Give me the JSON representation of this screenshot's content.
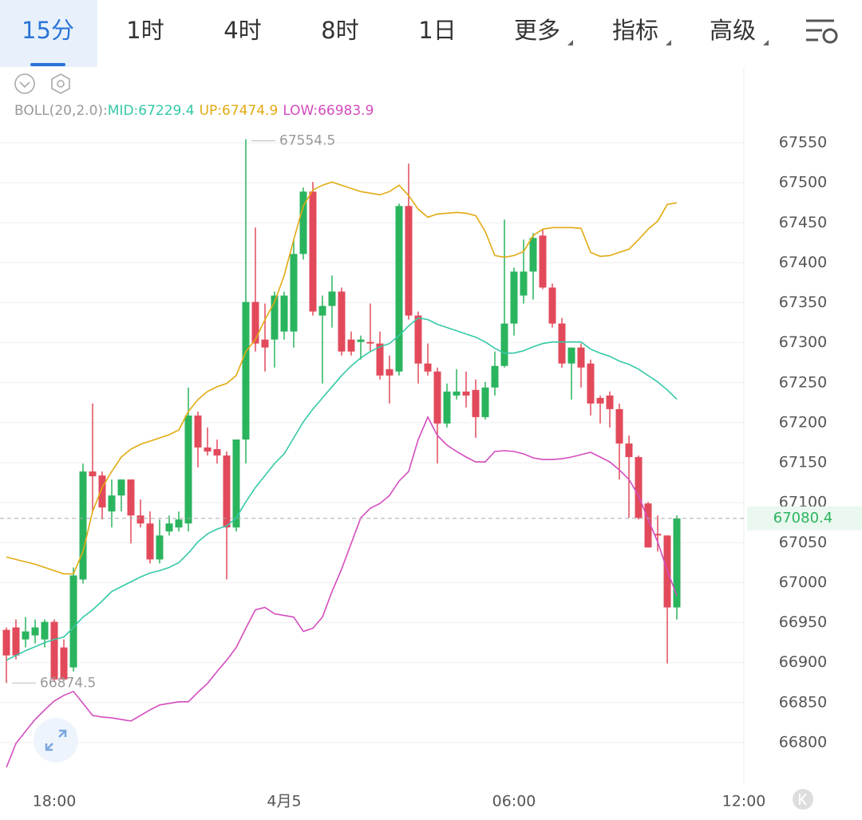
{
  "toolbar": {
    "tabs": [
      "15分",
      "1时",
      "4时",
      "8时",
      "1日",
      "更多",
      "指标",
      "高级"
    ]
  },
  "indicator": {
    "label": "BOLL(20,2.0):",
    "items": [
      {
        "text": "MID:67229.4",
        "color": "#35c9a8"
      },
      {
        "text": "UP:67474.9",
        "color": "#e2aa12"
      },
      {
        "text": "LOW:66983.9",
        "color": "#d44cbf"
      }
    ]
  },
  "chart_data": {
    "type": "candlestick",
    "categories": [
      null,
      null,
      null,
      null,
      null,
      "18:00",
      null,
      null,
      null,
      null,
      null,
      null,
      null,
      null,
      null,
      null,
      null,
      null,
      null,
      null,
      null,
      null,
      null,
      null,
      null,
      null,
      null,
      null,
      null,
      "4月5",
      null,
      null,
      null,
      null,
      null,
      null,
      null,
      null,
      null,
      null,
      null,
      null,
      null,
      null,
      null,
      null,
      null,
      null,
      null,
      null,
      null,
      null,
      null,
      "06:00",
      null,
      null,
      null,
      null,
      null,
      null,
      null,
      null,
      null,
      null,
      null,
      null,
      null,
      null,
      null,
      null,
      null,
      null,
      null,
      null,
      null,
      null,
      null,
      "12:00"
    ],
    "open": [
      66941,
      66944,
      66929,
      66934,
      66929,
      66951,
      66919,
      66894,
      67004,
      67139,
      67134,
      67089,
      67109,
      67129,
      67084,
      67074,
      67029,
      67064,
      67069,
      67074,
      67209,
      67169,
      67167,
      67159,
      67069,
      67179,
      67351,
      67304,
      67304,
      67314,
      67314,
      67411,
      67489,
      67334,
      67346,
      67364,
      67304,
      67301,
      67301,
      67299,
      67267,
      67264,
      67471,
      67334,
      67274,
      67264,
      67199,
      67234,
      67239,
      67241,
      67207,
      67244,
      67271,
      67324,
      67359,
      67389,
      67434,
      67369,
      67324,
      67274,
      67294,
      67274,
      67231,
      67234,
      67217,
      67174,
      67157,
      67099,
      67061,
      67059,
      66969,
      null,
      null,
      null,
      null,
      null,
      null,
      null
    ],
    "high": [
      66944,
      66954,
      66957,
      66954,
      66954,
      66954,
      66929,
      67019,
      67149,
      67224,
      67139,
      67129,
      67129,
      67129,
      67104,
      67089,
      67079,
      67084,
      67089,
      67244,
      67214,
      67194,
      67179,
      67164,
      67179,
      67554.5,
      67444,
      67349,
      67364,
      67364,
      67429,
      67494,
      67501,
      67359,
      67384,
      67369,
      67314,
      67309,
      67349,
      67314,
      67284,
      67474,
      67524,
      67339,
      67299,
      67269,
      67249,
      67267,
      67264,
      67254,
      67251,
      67289,
      67454,
      67394,
      67429,
      67437,
      67441,
      67374,
      67331,
      67294,
      67299,
      67279,
      67234,
      67239,
      67224,
      67184,
      67159,
      67101,
      67084,
      67059,
      67084,
      null,
      null,
      null,
      null,
      null,
      null,
      null
    ],
    "low": [
      66874.5,
      66904,
      66919,
      66924,
      66919,
      66876,
      66877,
      66889,
      66999,
      67089,
      67079,
      67069,
      67089,
      67049,
      67069,
      67024,
      67024,
      67059,
      67064,
      67064,
      67144,
      67159,
      67149,
      67004,
      67064,
      67149,
      67289,
      67264,
      67269,
      67304,
      67294,
      67404,
      67334,
      67249,
      67319,
      67284,
      67284,
      67279,
      67289,
      67254,
      67224,
      67259,
      67329,
      67249,
      67259,
      67149,
      67194,
      67229,
      67219,
      67181,
      67204,
      67234,
      67269,
      67309,
      67349,
      67354,
      67367,
      67319,
      67269,
      67229,
      67244,
      67209,
      67199,
      67194,
      67129,
      67081,
      67079,
      67044,
      67039,
      66899,
      66954,
      null,
      null,
      null,
      null,
      null,
      null,
      null
    ],
    "close": [
      66909,
      66909,
      66939,
      66944,
      66951,
      66879,
      66879,
      67009,
      67139,
      67133,
      67094,
      67109,
      67129,
      67084,
      67074,
      67029,
      67059,
      67074,
      67079,
      67209,
      67169,
      67164,
      67159,
      67069,
      67179,
      67351,
      67299,
      67294,
      67359,
      67359,
      67411,
      67489,
      67339,
      67346,
      67364,
      67289,
      67289,
      67304,
      67299,
      67259,
      67259,
      67471,
      67334,
      67274,
      67264,
      67199,
      67239,
      67239,
      67234,
      67207,
      67244,
      67271,
      67324,
      67389,
      67389,
      67431,
      67369,
      67324,
      67274,
      67294,
      67269,
      67224,
      67224,
      67217,
      67174,
      67157,
      67081,
      67044,
      67059,
      66969,
      67080.4,
      null,
      null,
      null,
      null,
      null,
      null,
      null
    ],
    "up_color": "#2ab45e",
    "down_color": "#e24a5b",
    "lines": [
      {
        "color": "#35c9a8",
        "values": [
          66903,
          66909,
          66915,
          66920,
          66925,
          66929,
          66932,
          66944,
          66957,
          66966,
          66977,
          66989,
          66995,
          67001,
          67007,
          67012,
          67015,
          67019,
          67025,
          67037,
          67051,
          67061,
          67067,
          67071,
          67081,
          67101,
          67119,
          67134,
          67149,
          67161,
          67181,
          67201,
          67217,
          67231,
          67245,
          67259,
          67271,
          67281,
          67289,
          67295,
          67299,
          67309,
          67321,
          67331,
          67329,
          67323,
          67319,
          67315,
          67311,
          67307,
          67301,
          67293,
          67287,
          67287,
          67290,
          67295,
          67299,
          67301,
          67301,
          67301,
          67301,
          67292,
          67287,
          67283,
          67277,
          67273,
          67267,
          67259,
          67251,
          67241,
          67229.4,
          null,
          null,
          null,
          null,
          null,
          null,
          null
        ]
      },
      {
        "color": "#e2aa12",
        "values": [
          67032,
          67029,
          67026,
          67023,
          67019,
          67015,
          67011,
          67011,
          67039,
          67089,
          67119,
          67139,
          67157,
          67167,
          67173,
          67177,
          67181,
          67185,
          67191,
          67214,
          67229,
          67239,
          67245,
          67249,
          67259,
          67289,
          67304,
          67329,
          67351,
          67384,
          67429,
          67471,
          67491,
          67497,
          67501,
          67497,
          67493,
          67489,
          67487,
          67485,
          67489,
          67497,
          67484,
          67467,
          67457,
          67461,
          67462,
          67463,
          67462,
          67459,
          67439,
          67409,
          67407,
          67409,
          67414,
          67434,
          67442,
          67444,
          67444,
          67444,
          67443,
          67413,
          67408,
          67409,
          67413,
          67417,
          67429,
          67442,
          67452,
          67473,
          67474.9,
          null,
          null,
          null,
          null,
          null,
          null,
          null
        ]
      },
      {
        "color": "#d44cbf",
        "values": [
          66769,
          66799,
          66814,
          66829,
          66841,
          66852,
          66859,
          66864,
          66849,
          66834,
          66832,
          66831,
          66829,
          66827,
          66834,
          66841,
          66847,
          66849,
          66851,
          66851,
          66863,
          66874,
          66889,
          66903,
          66919,
          66943,
          66966,
          66969,
          66961,
          66959,
          66957,
          66939,
          66943,
          66957,
          66989,
          67017,
          67049,
          67081,
          67093,
          67099,
          67109,
          67127,
          67139,
          67179,
          67207,
          67184,
          67172,
          67164,
          67157,
          67151,
          67151,
          67164,
          67165,
          67164,
          67161,
          67156,
          67154,
          67154,
          67155,
          67157,
          67160,
          67163,
          67157,
          67151,
          67141,
          67129,
          67109,
          67079,
          67051,
          67015,
          66983.9,
          null,
          null,
          null,
          null,
          null,
          null,
          null
        ]
      }
    ],
    "ylim": [
      66746.1,
      67643.8
    ],
    "yticks": [
      66800,
      66850,
      66900,
      66950,
      67000,
      67050,
      67100,
      67150,
      67200,
      67250,
      67300,
      67350,
      67400,
      67450,
      67500,
      67550
    ],
    "grid": true
  }
}
